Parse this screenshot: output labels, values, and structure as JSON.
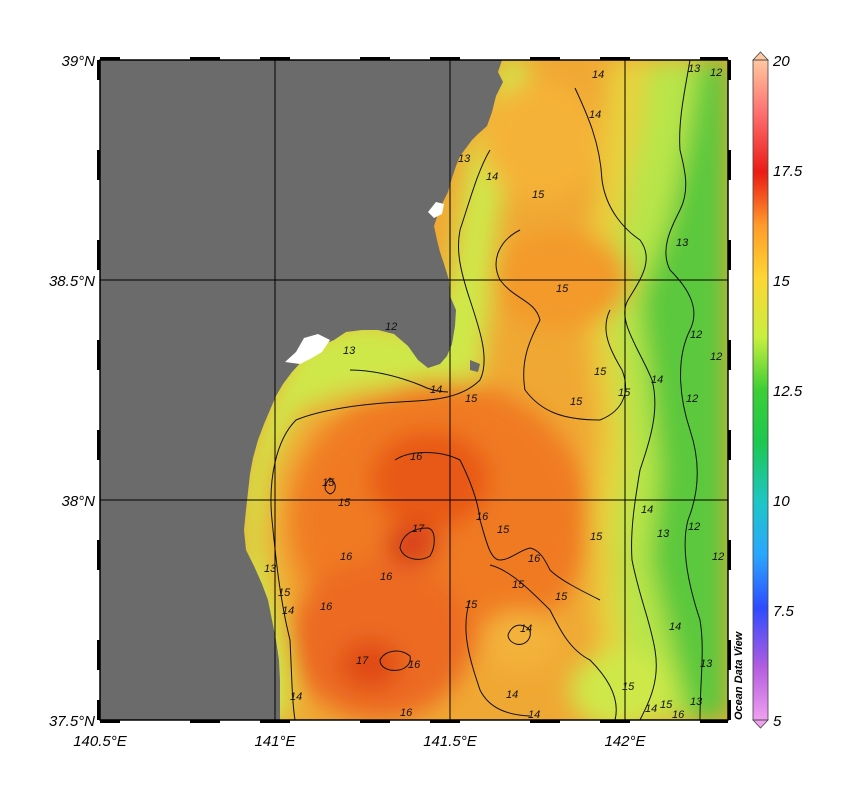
{
  "map": {
    "y_axis_labels": [
      "39°N",
      "38.5°N",
      "38°N",
      "37.5°N"
    ],
    "x_axis_labels": [
      "140.5°E",
      "141°E",
      "141.5°E",
      "142°E"
    ],
    "colorbar": {
      "tick_labels": [
        "20",
        "17.5",
        "15",
        "12.5",
        "10",
        "7.5",
        "5"
      ],
      "min": 5,
      "max": 20,
      "colors": [
        "#e68ee6",
        "#b35ce0",
        "#2d4cff",
        "#2aa6ff",
        "#1ec6c6",
        "#1cc850",
        "#3ccf35",
        "#c8ef3e",
        "#ffe033",
        "#ffb43a",
        "#ff7b1e",
        "#ea1b15",
        "#ff7070",
        "#ffc8a0"
      ]
    },
    "land_color": "#6b6b6b",
    "watermark": "Ocean Data View",
    "contour_labels": [
      "12",
      "12",
      "13",
      "13",
      "13",
      "13",
      "13",
      "13",
      "13",
      "14",
      "14",
      "14",
      "14",
      "14",
      "14",
      "14",
      "14",
      "14",
      "14",
      "15",
      "15",
      "15",
      "15",
      "15",
      "15",
      "15",
      "15",
      "15",
      "15",
      "15",
      "15",
      "15",
      "15",
      "16",
      "16",
      "16",
      "16",
      "16",
      "16",
      "16",
      "16",
      "17",
      "17",
      "12",
      "12",
      "12",
      "12",
      "12",
      "15",
      "14",
      "14",
      "13",
      "14",
      "15",
      "16"
    ]
  }
}
